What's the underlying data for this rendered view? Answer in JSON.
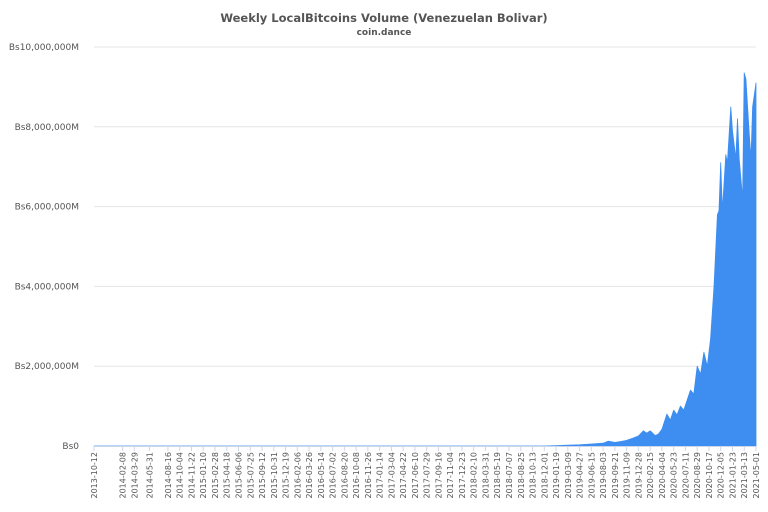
{
  "chart_data": {
    "type": "area",
    "title": "Weekly LocalBitcoins Volume (Venezuelan Bolivar)",
    "subtitle": "coin.dance",
    "xlabel": "",
    "ylabel": "",
    "ylim": [
      0,
      10000000
    ],
    "y_ticks": [
      0,
      2000000,
      4000000,
      6000000,
      8000000,
      10000000
    ],
    "y_tick_labels": [
      "Bs0",
      "Bs2,000,000M",
      "Bs4,000,000M",
      "Bs6,000,000M",
      "Bs8,000,000M",
      "Bs10,000,000M"
    ],
    "x_tick_labels": [
      "2013-10-12",
      "2014-02-08",
      "2014-03-29",
      "2014-05-31",
      "2014-08-16",
      "2014-10-04",
      "2014-11-22",
      "2015-01-10",
      "2015-02-28",
      "2015-04-18",
      "2015-06-06",
      "2015-07-25",
      "2015-09-12",
      "2015-10-31",
      "2015-12-19",
      "2016-02-06",
      "2016-03-26",
      "2016-05-14",
      "2016-07-02",
      "2016-08-20",
      "2016-10-08",
      "2016-11-26",
      "2017-01-14",
      "2017-03-04",
      "2017-04-22",
      "2017-06-10",
      "2017-07-29",
      "2017-09-16",
      "2017-11-04",
      "2017-12-23",
      "2018-02-10",
      "2018-03-31",
      "2018-05-19",
      "2018-07-07",
      "2018-08-25",
      "2018-10-13",
      "2018-12-01",
      "2019-01-19",
      "2019-03-09",
      "2019-04-27",
      "2019-06-15",
      "2019-08-03",
      "2019-09-21",
      "2019-11-09",
      "2019-12-28",
      "2020-02-15",
      "2020-04-04",
      "2020-05-23",
      "2020-07-11",
      "2020-08-29",
      "2020-10-17",
      "2020-12-05",
      "2021-01-23",
      "2021-03-13",
      "2021-05-01"
    ],
    "grid": true,
    "legend": "none",
    "color": "#3d8ef0",
    "series": [
      {
        "points": [
          [
            "2013-10-12",
            0
          ],
          [
            "2018-12-01",
            0
          ],
          [
            "2019-01-19",
            10000
          ],
          [
            "2019-03-09",
            20000
          ],
          [
            "2019-04-27",
            30000
          ],
          [
            "2019-06-15",
            50000
          ],
          [
            "2019-08-03",
            70000
          ],
          [
            "2019-08-24",
            120000
          ],
          [
            "2019-09-21",
            90000
          ],
          [
            "2019-10-12",
            110000
          ],
          [
            "2019-11-09",
            140000
          ],
          [
            "2019-12-07",
            200000
          ],
          [
            "2019-12-28",
            250000
          ],
          [
            "2020-01-18",
            380000
          ],
          [
            "2020-02-01",
            320000
          ],
          [
            "2020-02-15",
            380000
          ],
          [
            "2020-03-07",
            260000
          ],
          [
            "2020-03-21",
            300000
          ],
          [
            "2020-04-04",
            420000
          ],
          [
            "2020-04-25",
            800000
          ],
          [
            "2020-05-09",
            650000
          ],
          [
            "2020-05-23",
            900000
          ],
          [
            "2020-06-06",
            780000
          ],
          [
            "2020-06-20",
            1000000
          ],
          [
            "2020-07-04",
            900000
          ],
          [
            "2020-07-18",
            1150000
          ],
          [
            "2020-08-01",
            1400000
          ],
          [
            "2020-08-15",
            1300000
          ],
          [
            "2020-08-29",
            2000000
          ],
          [
            "2020-09-12",
            1800000
          ],
          [
            "2020-09-26",
            2350000
          ],
          [
            "2020-10-10",
            2000000
          ],
          [
            "2020-10-24",
            2700000
          ],
          [
            "2020-11-07",
            4000000
          ],
          [
            "2020-11-21",
            5800000
          ],
          [
            "2020-11-28",
            5900000
          ],
          [
            "2020-12-05",
            7100000
          ],
          [
            "2020-12-12",
            5900000
          ],
          [
            "2020-12-26",
            7300000
          ],
          [
            "2021-01-02",
            7100000
          ],
          [
            "2021-01-16",
            8500000
          ],
          [
            "2021-01-23",
            7900000
          ],
          [
            "2021-02-06",
            7200000
          ],
          [
            "2021-02-13",
            8200000
          ],
          [
            "2021-02-20",
            7200000
          ],
          [
            "2021-03-06",
            6200000
          ],
          [
            "2021-03-13",
            9350000
          ],
          [
            "2021-03-20",
            9200000
          ],
          [
            "2021-04-03",
            7800000
          ],
          [
            "2021-04-10",
            7200000
          ],
          [
            "2021-04-17",
            8500000
          ],
          [
            "2021-05-01",
            9100000
          ]
        ]
      }
    ]
  }
}
